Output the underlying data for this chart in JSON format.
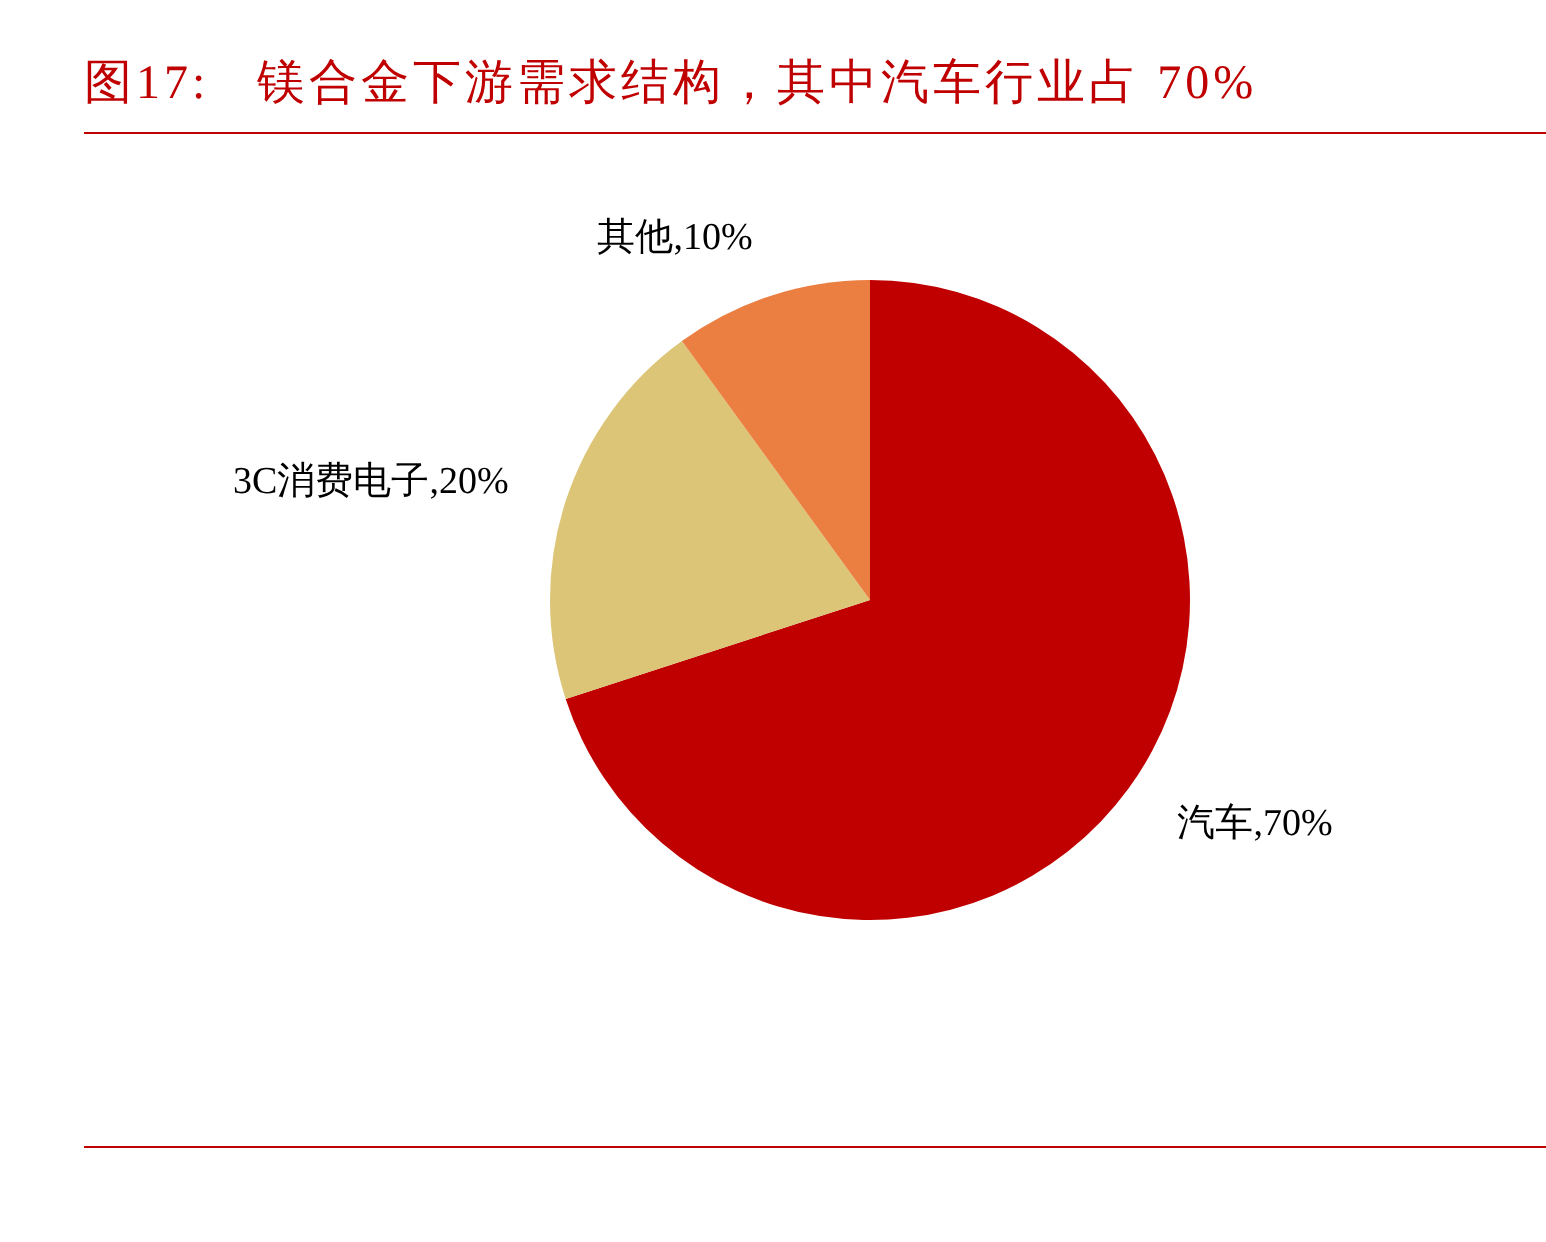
{
  "chart_data": {
    "type": "pie",
    "title": "图17:   镁合金下游需求结构，其中汽车行业占 70%",
    "categories": [
      "汽车",
      "3C消费电子",
      "其他"
    ],
    "values": [
      70,
      20,
      10
    ],
    "colors": [
      "#c00000",
      "#dcc577",
      "#eb7e41"
    ],
    "value_labels": [
      "70%",
      "20%",
      "10%"
    ]
  }
}
